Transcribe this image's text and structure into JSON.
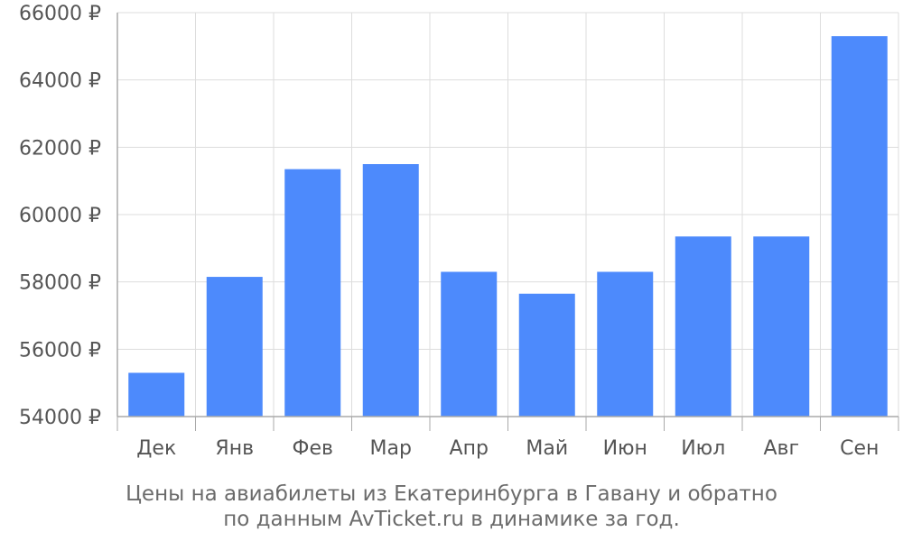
{
  "chart_data": {
    "type": "bar",
    "title": "",
    "xlabel": "",
    "ylabel": "",
    "categories": [
      "Дек",
      "Янв",
      "Фев",
      "Мар",
      "Апр",
      "Май",
      "Июн",
      "Июл",
      "Авг",
      "Сен"
    ],
    "values": [
      55300,
      58150,
      61350,
      61500,
      58300,
      57650,
      58300,
      59350,
      59350,
      65300
    ],
    "ylim": [
      54000,
      66000
    ],
    "yticks": [
      54000,
      56000,
      58000,
      60000,
      62000,
      64000,
      66000
    ],
    "ytick_labels": [
      "54000 ₽",
      "56000 ₽",
      "58000 ₽",
      "60000 ₽",
      "62000 ₽",
      "64000 ₽",
      "66000 ₽"
    ],
    "grid": true,
    "colors": {
      "bar": "#4d8afc",
      "grid": "#dddddd",
      "axis": "#aaaaaa",
      "tick_text": "#555555",
      "caption_text": "#6b6b6b"
    }
  },
  "caption": {
    "line1": "Цены на авиабилеты из Екатеринбурга в Гавану и обратно",
    "line2": "по данным AvTicket.ru в динамике за год."
  }
}
